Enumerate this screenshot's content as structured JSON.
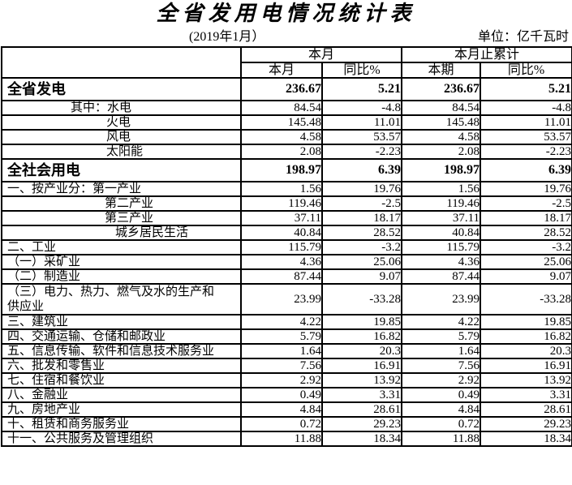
{
  "title": "全省发用电情况统计表",
  "subtitle": "(2019年1月）",
  "unit_label": "单位：亿千瓦时",
  "colors": {
    "text": "#000000",
    "background": "#ffffff",
    "border": "#000000"
  },
  "table": {
    "header": {
      "groups": [
        {
          "label": "本月"
        },
        {
          "label": "本月止累计"
        }
      ],
      "columns": [
        "本月",
        "同比%",
        "本期",
        "同比%"
      ]
    },
    "rows": [
      {
        "label": "全省发电",
        "style": "section",
        "indent": 0,
        "values": [
          "236.67",
          "5.21",
          "236.67",
          "5.21"
        ]
      },
      {
        "label": "其中：水电",
        "style": "normal",
        "indent": 1,
        "values": [
          "84.54",
          "-4.8",
          "84.54",
          "-4.8"
        ]
      },
      {
        "label": "火电",
        "style": "normal",
        "indent": 2,
        "values": [
          "145.48",
          "11.01",
          "145.48",
          "11.01"
        ]
      },
      {
        "label": "风电",
        "style": "normal",
        "indent": 2,
        "values": [
          "4.58",
          "53.57",
          "4.58",
          "53.57"
        ]
      },
      {
        "label": "太阳能",
        "style": "normal",
        "indent": 2,
        "values": [
          "2.08",
          "-2.23",
          "2.08",
          "-2.23"
        ]
      },
      {
        "label": "全社会用电",
        "style": "section",
        "indent": 0,
        "values": [
          "198.97",
          "6.39",
          "198.97",
          "6.39"
        ]
      },
      {
        "label": "一、按产业分：第一产业",
        "style": "normal",
        "indent": 0,
        "values": [
          "1.56",
          "19.76",
          "1.56",
          "19.76"
        ]
      },
      {
        "label": "第二产业",
        "style": "normal",
        "indent": 3,
        "values": [
          "119.46",
          "-2.5",
          "119.46",
          "-2.5"
        ]
      },
      {
        "label": "第三产业",
        "style": "normal",
        "indent": 3,
        "values": [
          "37.11",
          "18.17",
          "37.11",
          "18.17"
        ]
      },
      {
        "label": "城乡居民生活",
        "style": "normal",
        "indent": 4,
        "values": [
          "40.84",
          "28.52",
          "40.84",
          "28.52"
        ]
      },
      {
        "label": "二、工业",
        "style": "normal",
        "indent": 0,
        "values": [
          "115.79",
          "-3.2",
          "115.79",
          "-3.2"
        ]
      },
      {
        "label": "（一）采矿业",
        "style": "normal",
        "indent": 0,
        "values": [
          "4.36",
          "25.06",
          "4.36",
          "25.06"
        ]
      },
      {
        "label": "（二）制造业",
        "style": "normal",
        "indent": 0,
        "values": [
          "87.44",
          "9.07",
          "87.44",
          "9.07"
        ]
      },
      {
        "label": "（三）电力、热力、燃气及水的生产和\n供应业",
        "style": "tall",
        "indent": 0,
        "values": [
          "23.99",
          "-33.28",
          "23.99",
          "-33.28"
        ]
      },
      {
        "label": "三、建筑业",
        "style": "normal",
        "indent": 0,
        "values": [
          "4.22",
          "19.85",
          "4.22",
          "19.85"
        ]
      },
      {
        "label": "四、交通运输、仓储和邮政业",
        "style": "normal",
        "indent": 0,
        "values": [
          "5.79",
          "16.82",
          "5.79",
          "16.82"
        ]
      },
      {
        "label": "五、信息传输、软件和信息技术服务业",
        "style": "normal",
        "indent": 0,
        "values": [
          "1.64",
          "20.3",
          "1.64",
          "20.3"
        ]
      },
      {
        "label": "六、批发和零售业",
        "style": "normal",
        "indent": 0,
        "values": [
          "7.56",
          "16.91",
          "7.56",
          "16.91"
        ]
      },
      {
        "label": "七、住宿和餐饮业",
        "style": "normal",
        "indent": 0,
        "values": [
          "2.92",
          "13.92",
          "2.92",
          "13.92"
        ]
      },
      {
        "label": "八、金融业",
        "style": "normal",
        "indent": 0,
        "values": [
          "0.49",
          "3.31",
          "0.49",
          "3.31"
        ]
      },
      {
        "label": "九、房地产业",
        "style": "normal",
        "indent": 0,
        "values": [
          "4.84",
          "28.61",
          "4.84",
          "28.61"
        ]
      },
      {
        "label": "十、租赁和商务服务业",
        "style": "normal",
        "indent": 0,
        "values": [
          "0.72",
          "29.23",
          "0.72",
          "29.23"
        ]
      },
      {
        "label": "十一、公共服务及管理组织",
        "style": "normal",
        "indent": 0,
        "values": [
          "11.88",
          "18.34",
          "11.88",
          "18.34"
        ]
      }
    ]
  }
}
